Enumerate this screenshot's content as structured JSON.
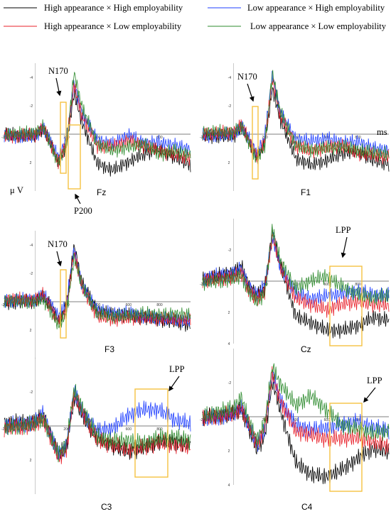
{
  "legend": {
    "items": [
      {
        "label": "High appearance × High employability",
        "color": "#000000"
      },
      {
        "label": "Low appearance × High employability",
        "color": "#1f3fff"
      },
      {
        "label": "High appearance × Low employability",
        "color": "#e8202a"
      },
      {
        "label": "Low appearance × Low employability",
        "color": "#2e8b2e"
      }
    ]
  },
  "highlight_color": "#f5c242",
  "chart_data": [
    {
      "type": "line",
      "panel": "Fz",
      "title": "Fz",
      "x_unit": "ms",
      "y_unit": "μ V",
      "xlim": [
        -200,
        1000
      ],
      "ylim": [
        -5,
        4
      ],
      "y_inverted": true,
      "xticks": [
        -200,
        200,
        400,
        600,
        800
      ],
      "yticks": [
        -4,
        -2,
        2
      ],
      "x": [
        -200,
        0,
        50,
        100,
        150,
        200,
        250,
        300,
        400,
        500,
        600,
        700,
        800,
        900,
        1000
      ],
      "series": [
        {
          "name": "High appearance × High employability",
          "values": [
            0,
            0,
            -0.6,
            0.6,
            1.8,
            0.6,
            -3.0,
            -1.0,
            2.0,
            2.5,
            2.0,
            1.5,
            1.2,
            1.8,
            2.3
          ]
        },
        {
          "name": "Low appearance × High employability",
          "values": [
            0,
            0,
            -0.6,
            0.5,
            1.5,
            0.3,
            -3.6,
            -1.5,
            0.5,
            0.8,
            0.2,
            0.8,
            0.7,
            0.9,
            1.1
          ]
        },
        {
          "name": "High appearance × Low employability",
          "values": [
            0,
            0,
            -0.5,
            0.8,
            2.0,
            0.8,
            -3.4,
            -1.2,
            1.0,
            1.0,
            0.6,
            0.9,
            1.2,
            1.4,
            1.6
          ]
        },
        {
          "name": "Low appearance × Low employability",
          "values": [
            0,
            0,
            -0.4,
            0.9,
            2.2,
            0.9,
            -4.2,
            -1.8,
            0.8,
            1.2,
            0.9,
            0.6,
            1.3,
            1.0,
            1.3
          ]
        }
      ],
      "annotations": [
        "N170",
        "P200"
      ]
    },
    {
      "type": "line",
      "panel": "F1",
      "title": "F1",
      "x_unit": "ms",
      "xlim": [
        -200,
        1000
      ],
      "ylim": [
        -5,
        4
      ],
      "y_inverted": true,
      "xticks": [
        -200,
        200,
        400,
        600,
        800
      ],
      "yticks": [
        -4,
        -2,
        2
      ],
      "x": [
        -200,
        0,
        50,
        100,
        150,
        200,
        250,
        300,
        400,
        500,
        600,
        700,
        800,
        900,
        1000
      ],
      "series": [
        {
          "name": "High appearance × High employability",
          "values": [
            0,
            0,
            -0.6,
            0.5,
            1.6,
            0.7,
            -3.2,
            -1.0,
            1.8,
            2.3,
            2.0,
            1.5,
            1.3,
            1.9,
            2.1
          ]
        },
        {
          "name": "Low appearance × High employability",
          "values": [
            0,
            0,
            -0.5,
            0.4,
            1.5,
            0.3,
            -4.0,
            -1.4,
            0.5,
            0.6,
            0.4,
            0.6,
            0.5,
            0.9,
            1.0
          ]
        },
        {
          "name": "High appearance × Low employability",
          "values": [
            0,
            0,
            -0.5,
            0.6,
            1.7,
            0.8,
            -3.8,
            -1.2,
            0.9,
            1.2,
            0.9,
            0.7,
            1.2,
            1.3,
            1.5
          ]
        },
        {
          "name": "Low appearance × Low employability",
          "values": [
            0,
            0,
            -0.4,
            0.7,
            1.9,
            0.9,
            -4.3,
            -1.6,
            0.7,
            1.0,
            0.8,
            0.7,
            1.0,
            1.2,
            1.4
          ]
        }
      ],
      "annotations": [
        "N170"
      ]
    },
    {
      "type": "line",
      "panel": "F3",
      "title": "F3",
      "xlim": [
        -200,
        1000
      ],
      "ylim": [
        -5,
        4
      ],
      "y_inverted": true,
      "xticks": [
        -200,
        200,
        400,
        600,
        800
      ],
      "yticks": [
        -4,
        -2,
        2
      ],
      "x": [
        -200,
        0,
        50,
        100,
        150,
        200,
        250,
        300,
        400,
        500,
        600,
        700,
        800,
        900,
        1000
      ],
      "series": [
        {
          "name": "High appearance × High employability",
          "values": [
            0,
            0,
            -0.3,
            0.4,
            1.4,
            0.5,
            -3.8,
            -1.2,
            0.8,
            1.0,
            1.0,
            1.1,
            1.2,
            1.3,
            1.5
          ]
        },
        {
          "name": "Low appearance × High employability",
          "values": [
            0,
            0,
            -0.3,
            0.3,
            1.2,
            0.3,
            -3.6,
            -1.0,
            0.6,
            0.8,
            0.7,
            0.9,
            1.0,
            1.1,
            1.2
          ]
        },
        {
          "name": "High appearance × Low employability",
          "values": [
            0,
            0,
            -0.4,
            0.5,
            1.5,
            0.6,
            -3.5,
            -1.1,
            0.9,
            1.1,
            1.0,
            1.0,
            1.1,
            1.2,
            1.3
          ]
        },
        {
          "name": "Low appearance × Low employability",
          "values": [
            0,
            0,
            -0.2,
            0.6,
            1.6,
            0.7,
            -3.3,
            -1.3,
            0.7,
            0.9,
            0.9,
            0.8,
            1.0,
            1.0,
            1.1
          ]
        }
      ],
      "annotations": [
        "N170"
      ]
    },
    {
      "type": "line",
      "panel": "Cz",
      "title": "Cz",
      "xlim": [
        -200,
        1000
      ],
      "ylim": [
        -4,
        4
      ],
      "y_inverted": true,
      "xticks": [
        -200,
        200,
        400,
        600,
        800
      ],
      "yticks": [
        -2,
        2,
        4
      ],
      "x": [
        -200,
        0,
        50,
        100,
        150,
        200,
        250,
        300,
        400,
        500,
        600,
        700,
        800,
        900,
        1000
      ],
      "series": [
        {
          "name": "High appearance × High employability",
          "values": [
            0,
            -0.4,
            -0.8,
            0.5,
            1.0,
            0.6,
            -3.2,
            -1.0,
            2.2,
            2.6,
            3.0,
            3.0,
            2.7,
            2.2,
            2.4
          ]
        },
        {
          "name": "Low appearance × High employability",
          "values": [
            0,
            -0.4,
            -0.7,
            0.4,
            0.9,
            0.3,
            -3.0,
            -1.0,
            0.6,
            1.0,
            0.8,
            0.7,
            0.6,
            0.9,
            1.0
          ]
        },
        {
          "name": "High appearance × Low employability",
          "values": [
            0,
            -0.3,
            -0.6,
            0.5,
            1.1,
            0.5,
            -3.1,
            -1.1,
            1.0,
            1.4,
            1.8,
            1.5,
            1.4,
            1.6,
            1.7
          ]
        },
        {
          "name": "Low appearance × Low employability",
          "values": [
            0,
            -0.3,
            -0.5,
            0.6,
            1.2,
            0.7,
            -3.4,
            -1.4,
            0.5,
            0.0,
            -0.2,
            0.5,
            1.0,
            1.2,
            1.0
          ]
        }
      ],
      "annotations": [
        "LPP"
      ]
    },
    {
      "type": "line",
      "panel": "C3",
      "title": "C3",
      "xlim": [
        -200,
        1000
      ],
      "ylim": [
        -4,
        4
      ],
      "y_inverted": true,
      "xticks": [
        -200,
        200,
        400,
        600,
        800
      ],
      "yticks": [
        -2,
        2
      ],
      "x": [
        -200,
        0,
        50,
        100,
        150,
        200,
        250,
        300,
        400,
        500,
        600,
        700,
        800,
        900,
        1000
      ],
      "series": [
        {
          "name": "High appearance × High employability",
          "values": [
            0,
            -0.2,
            -0.6,
            0.5,
            1.6,
            1.2,
            -1.8,
            -0.8,
            0.6,
            1.0,
            1.4,
            1.2,
            0.9,
            1.0,
            1.2
          ]
        },
        {
          "name": "Low appearance × High employability",
          "values": [
            0,
            -0.3,
            -0.9,
            0.4,
            1.6,
            1.0,
            -2.2,
            -1.0,
            0.2,
            0.1,
            -0.6,
            -0.9,
            -0.8,
            -0.2,
            0.0
          ]
        },
        {
          "name": "High appearance × Low employability",
          "values": [
            0,
            -0.2,
            -0.6,
            0.6,
            1.8,
            1.3,
            -1.9,
            -0.9,
            0.9,
            1.2,
            1.5,
            1.4,
            1.1,
            1.2,
            1.3
          ]
        },
        {
          "name": "Low appearance × Low employability",
          "values": [
            0,
            -0.2,
            -0.5,
            0.7,
            1.7,
            1.1,
            -2.0,
            -1.0,
            0.8,
            1.0,
            1.0,
            1.1,
            0.7,
            0.6,
            0.8
          ]
        }
      ],
      "annotations": [
        "LPP"
      ]
    },
    {
      "type": "line",
      "panel": "C4",
      "title": "C4",
      "xlim": [
        -200,
        1000
      ],
      "ylim": [
        -4,
        4
      ],
      "y_inverted": true,
      "xticks": [
        -200,
        200,
        400,
        600,
        800
      ],
      "yticks": [
        -2,
        2,
        4
      ],
      "x": [
        -200,
        0,
        50,
        100,
        150,
        200,
        250,
        300,
        400,
        500,
        600,
        700,
        800,
        900,
        1000
      ],
      "series": [
        {
          "name": "High appearance × High employability",
          "values": [
            0,
            -0.3,
            -0.6,
            0.6,
            1.8,
            1.0,
            -2.2,
            -0.5,
            2.6,
            3.4,
            3.6,
            3.2,
            2.6,
            2.0,
            2.2
          ]
        },
        {
          "name": "Low appearance × High employability",
          "values": [
            0,
            -0.3,
            -0.8,
            0.5,
            1.6,
            0.6,
            -2.6,
            -1.0,
            0.6,
            0.9,
            0.8,
            0.6,
            0.4,
            0.7,
            0.8
          ]
        },
        {
          "name": "High appearance × Low employability",
          "values": [
            0,
            -0.2,
            -0.5,
            0.6,
            1.7,
            0.8,
            -2.4,
            -0.8,
            1.0,
            1.2,
            1.4,
            1.3,
            1.2,
            1.4,
            1.6
          ]
        },
        {
          "name": "Low appearance × Low employability",
          "values": [
            0,
            -0.4,
            -1.0,
            0.5,
            1.5,
            0.5,
            -2.8,
            -1.8,
            -0.6,
            -1.2,
            -0.4,
            0.4,
            0.6,
            0.8,
            0.7
          ]
        }
      ],
      "annotations": [
        "LPP"
      ]
    }
  ]
}
